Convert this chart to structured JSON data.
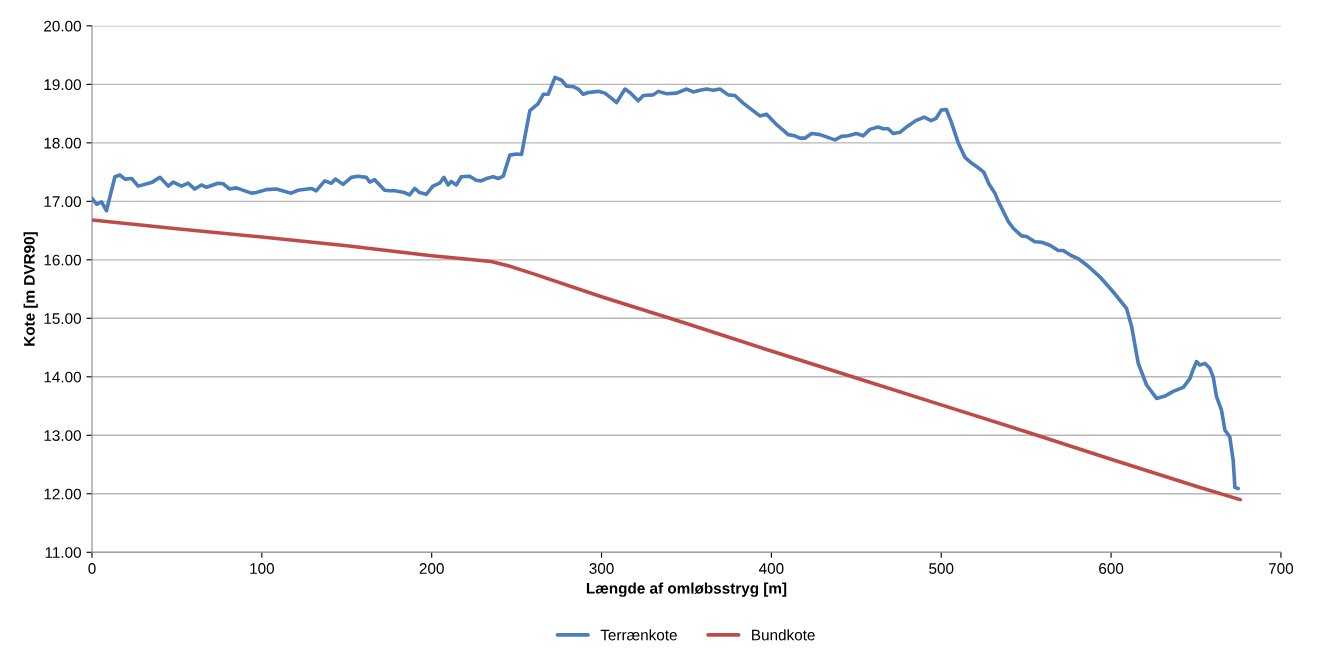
{
  "chart_data": {
    "type": "line",
    "xlabel": "Længde af omløbsstryg [m]",
    "ylabel": "Kote [m DVR90]",
    "xlim": [
      0,
      700
    ],
    "xticks": [
      0,
      100,
      200,
      300,
      400,
      500,
      600,
      700
    ],
    "ylim": [
      11,
      20
    ],
    "yticks": [
      {
        "value": 11,
        "label": "11.00"
      },
      {
        "value": 12,
        "label": "12.00"
      },
      {
        "value": 13,
        "label": "13.00"
      },
      {
        "value": 14,
        "label": "14.00"
      },
      {
        "value": 15,
        "label": "15.00"
      },
      {
        "value": 16,
        "label": "16.00"
      },
      {
        "value": 17,
        "label": "17.00"
      },
      {
        "value": 18,
        "label": "18.00"
      },
      {
        "value": 19,
        "label": "19.00"
      },
      {
        "value": 20,
        "label": "20.00"
      }
    ],
    "grid": "y",
    "legend": "bottom",
    "marker": "none",
    "line_style": "solid",
    "series": [
      {
        "name": "Terrænkote",
        "color": "#4a7ebb",
        "x": [
          0,
          2.7,
          5.6,
          8.5,
          13.5,
          16.4,
          19.4,
          23.3,
          27.2,
          35,
          40,
          44.9,
          47.8,
          52.7,
          56.6,
          60.5,
          64.4,
          67.4,
          74.2,
          77.2,
          81.1,
          85,
          93.8,
          96.8,
          102.6,
          108.5,
          117.3,
          121.3,
          129.1,
          132,
          137,
          140.9,
          143.3,
          147.8,
          152.7,
          156.6,
          161.5,
          163.5,
          166.4,
          172.3,
          175.2,
          178.2,
          184,
          187,
          190,
          192.9,
          196.8,
          200.7,
          204.7,
          207.2,
          209.6,
          211.5,
          214.5,
          217.4,
          222.3,
          226.2,
          229.2,
          232.3,
          236.2,
          239.2,
          242.1,
          246,
          250,
          252.9,
          257.8,
          262.7,
          265.7,
          268.6,
          272.6,
          276.5,
          279.4,
          283.4,
          286.3,
          289.2,
          292.2,
          298.1,
          302,
          305.9,
          308.9,
          313.8,
          316.7,
          321.6,
          324.6,
          330.4,
          333.4,
          338.3,
          344.2,
          350.1,
          354,
          357.9,
          361.8,
          365.8,
          369.7,
          374.6,
          378.5,
          383.4,
          393.2,
          397.2,
          403.1,
          409.9,
          413.8,
          416.8,
          419.7,
          423.7,
          428.6,
          437.4,
          441.3,
          445.2,
          450.1,
          454.1,
          458,
          462.9,
          465.8,
          468.8,
          471.7,
          475.7,
          480,
          485,
          490,
          494,
          497,
          500,
          503,
          506,
          510,
          514,
          518,
          522,
          525,
          528,
          531.6,
          533.6,
          539.4,
          542.4,
          547.3,
          550.2,
          555.1,
          559.1,
          564,
          568.9,
          571.8,
          576.7,
          580.7,
          586.5,
          593.4,
          601.3,
          609.1,
          612.1,
          616,
          620.9,
          626.8,
          631.7,
          636.6,
          642.5,
          646.4,
          648.4,
          650.3,
          652.3,
          655.2,
          658.2,
          660.1,
          662.1,
          665,
          667,
          669.9,
          671.9,
          672.9,
          674.8
        ],
        "values": [
          17.05,
          16.95,
          16.99,
          16.84,
          17.42,
          17.45,
          17.38,
          17.39,
          17.26,
          17.32,
          17.41,
          17.26,
          17.33,
          17.26,
          17.31,
          17.21,
          17.28,
          17.24,
          17.31,
          17.3,
          17.21,
          17.23,
          17.14,
          17.15,
          17.2,
          17.21,
          17.14,
          17.19,
          17.22,
          17.18,
          17.35,
          17.31,
          17.38,
          17.29,
          17.41,
          17.43,
          17.41,
          17.33,
          17.37,
          17.19,
          17.18,
          17.18,
          17.15,
          17.11,
          17.22,
          17.15,
          17.12,
          17.26,
          17.31,
          17.41,
          17.28,
          17.34,
          17.28,
          17.42,
          17.43,
          17.36,
          17.35,
          17.39,
          17.42,
          17.39,
          17.43,
          17.79,
          17.81,
          17.8,
          18.55,
          18.67,
          18.83,
          18.83,
          19.12,
          19.07,
          18.97,
          18.96,
          18.92,
          18.83,
          18.86,
          18.88,
          18.85,
          18.76,
          18.69,
          18.92,
          18.86,
          18.72,
          18.81,
          18.82,
          18.88,
          18.84,
          18.85,
          18.92,
          18.87,
          18.9,
          18.92,
          18.9,
          18.92,
          18.82,
          18.81,
          18.68,
          18.46,
          18.49,
          18.31,
          18.14,
          18.12,
          18.08,
          18.08,
          18.16,
          18.14,
          18.05,
          18.11,
          18.12,
          18.16,
          18.12,
          18.23,
          18.27,
          18.24,
          18.24,
          18.16,
          18.18,
          18.28,
          18.38,
          18.44,
          18.38,
          18.42,
          18.56,
          18.57,
          18.35,
          18,
          17.75,
          17.65,
          17.57,
          17.5,
          17.3,
          17.14,
          17,
          16.66,
          16.54,
          16.41,
          16.4,
          16.31,
          16.3,
          16.25,
          16.16,
          16.16,
          16.07,
          16.02,
          15.89,
          15.71,
          15.45,
          15.17,
          14.86,
          14.23,
          13.86,
          13.63,
          13.67,
          13.75,
          13.82,
          13.97,
          14.13,
          14.26,
          14.2,
          14.23,
          14.14,
          14,
          13.66,
          13.43,
          13.09,
          12.97,
          12.57,
          12.11,
          12.09
        ]
      },
      {
        "name": "Bundkote",
        "color": "#be4b48",
        "x": [
          0,
          50,
          100,
          150,
          200,
          235,
          245,
          260,
          300,
          350,
          400,
          450,
          500,
          550,
          600,
          650,
          676
        ],
        "values": [
          16.68,
          16.53,
          16.39,
          16.24,
          16.07,
          15.97,
          15.9,
          15.76,
          15.37,
          14.91,
          14.44,
          13.98,
          13.52,
          13.06,
          12.59,
          12.13,
          11.9
        ]
      }
    ]
  }
}
